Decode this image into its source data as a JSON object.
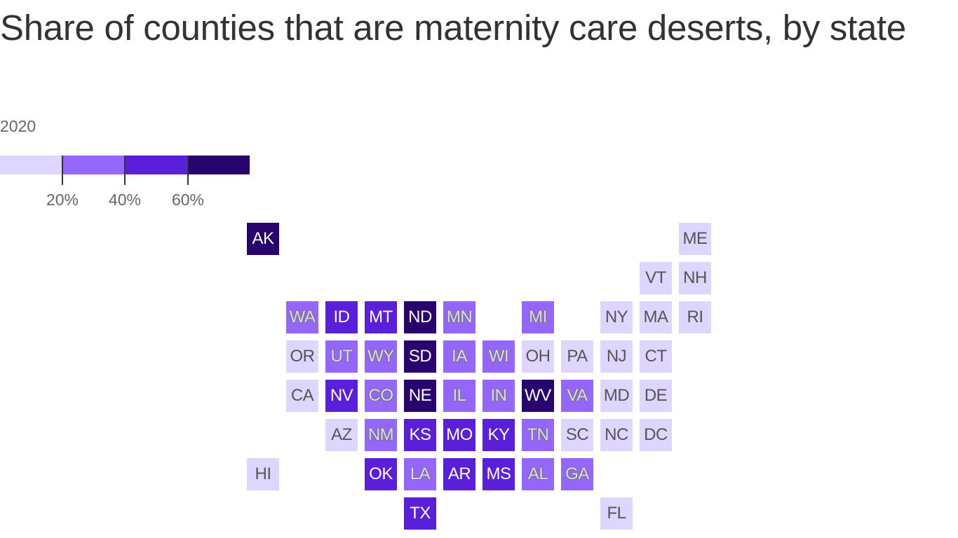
{
  "title": "Share of counties that are maternity care deserts, by state",
  "subtitle": "2020",
  "legend": {
    "bins": [
      {
        "color": "#ded6fe"
      },
      {
        "color": "#9466fc"
      },
      {
        "color": "#5a1fd8"
      },
      {
        "color": "#28056e"
      }
    ],
    "ticks": [
      "20%",
      "40%",
      "60%"
    ]
  },
  "colors": {
    "bin0": "#ded6fe",
    "bin1": "#9466fc",
    "bin2": "#5a1fd8",
    "bin3": "#28056e"
  },
  "states": [
    {
      "abbr": "AK",
      "row": 0,
      "col": 0,
      "bin": 3
    },
    {
      "abbr": "ME",
      "row": 0,
      "col": 11,
      "bin": 0
    },
    {
      "abbr": "VT",
      "row": 1,
      "col": 10,
      "bin": 0
    },
    {
      "abbr": "NH",
      "row": 1,
      "col": 11,
      "bin": 0
    },
    {
      "abbr": "WA",
      "row": 2,
      "col": 1,
      "bin": 1
    },
    {
      "abbr": "ID",
      "row": 2,
      "col": 2,
      "bin": 2
    },
    {
      "abbr": "MT",
      "row": 2,
      "col": 3,
      "bin": 2
    },
    {
      "abbr": "ND",
      "row": 2,
      "col": 4,
      "bin": 3
    },
    {
      "abbr": "MN",
      "row": 2,
      "col": 5,
      "bin": 1
    },
    {
      "abbr": "MI",
      "row": 2,
      "col": 7,
      "bin": 1
    },
    {
      "abbr": "NY",
      "row": 2,
      "col": 9,
      "bin": 0
    },
    {
      "abbr": "MA",
      "row": 2,
      "col": 10,
      "bin": 0
    },
    {
      "abbr": "RI",
      "row": 2,
      "col": 11,
      "bin": 0
    },
    {
      "abbr": "OR",
      "row": 3,
      "col": 1,
      "bin": 0
    },
    {
      "abbr": "UT",
      "row": 3,
      "col": 2,
      "bin": 1
    },
    {
      "abbr": "WY",
      "row": 3,
      "col": 3,
      "bin": 1
    },
    {
      "abbr": "SD",
      "row": 3,
      "col": 4,
      "bin": 3
    },
    {
      "abbr": "IA",
      "row": 3,
      "col": 5,
      "bin": 1
    },
    {
      "abbr": "WI",
      "row": 3,
      "col": 6,
      "bin": 1
    },
    {
      "abbr": "OH",
      "row": 3,
      "col": 7,
      "bin": 0
    },
    {
      "abbr": "PA",
      "row": 3,
      "col": 8,
      "bin": 0
    },
    {
      "abbr": "NJ",
      "row": 3,
      "col": 9,
      "bin": 0
    },
    {
      "abbr": "CT",
      "row": 3,
      "col": 10,
      "bin": 0
    },
    {
      "abbr": "CA",
      "row": 4,
      "col": 1,
      "bin": 0
    },
    {
      "abbr": "NV",
      "row": 4,
      "col": 2,
      "bin": 2
    },
    {
      "abbr": "CO",
      "row": 4,
      "col": 3,
      "bin": 1
    },
    {
      "abbr": "NE",
      "row": 4,
      "col": 4,
      "bin": 3
    },
    {
      "abbr": "IL",
      "row": 4,
      "col": 5,
      "bin": 1
    },
    {
      "abbr": "IN",
      "row": 4,
      "col": 6,
      "bin": 1
    },
    {
      "abbr": "WV",
      "row": 4,
      "col": 7,
      "bin": 3
    },
    {
      "abbr": "VA",
      "row": 4,
      "col": 8,
      "bin": 1
    },
    {
      "abbr": "MD",
      "row": 4,
      "col": 9,
      "bin": 0
    },
    {
      "abbr": "DE",
      "row": 4,
      "col": 10,
      "bin": 0
    },
    {
      "abbr": "AZ",
      "row": 5,
      "col": 2,
      "bin": 0
    },
    {
      "abbr": "NM",
      "row": 5,
      "col": 3,
      "bin": 1
    },
    {
      "abbr": "KS",
      "row": 5,
      "col": 4,
      "bin": 2
    },
    {
      "abbr": "MO",
      "row": 5,
      "col": 5,
      "bin": 2
    },
    {
      "abbr": "KY",
      "row": 5,
      "col": 6,
      "bin": 2
    },
    {
      "abbr": "TN",
      "row": 5,
      "col": 7,
      "bin": 1
    },
    {
      "abbr": "SC",
      "row": 5,
      "col": 8,
      "bin": 0
    },
    {
      "abbr": "NC",
      "row": 5,
      "col": 9,
      "bin": 0
    },
    {
      "abbr": "DC",
      "row": 5,
      "col": 10,
      "bin": 0
    },
    {
      "abbr": "HI",
      "row": 6,
      "col": 0,
      "bin": 0
    },
    {
      "abbr": "OK",
      "row": 6,
      "col": 3,
      "bin": 2
    },
    {
      "abbr": "LA",
      "row": 6,
      "col": 4,
      "bin": 1
    },
    {
      "abbr": "AR",
      "row": 6,
      "col": 5,
      "bin": 2
    },
    {
      "abbr": "MS",
      "row": 6,
      "col": 6,
      "bin": 2
    },
    {
      "abbr": "AL",
      "row": 6,
      "col": 7,
      "bin": 1
    },
    {
      "abbr": "GA",
      "row": 6,
      "col": 8,
      "bin": 1
    },
    {
      "abbr": "TX",
      "row": 7,
      "col": 4,
      "bin": 2
    },
    {
      "abbr": "FL",
      "row": 7,
      "col": 9,
      "bin": 0
    }
  ]
}
